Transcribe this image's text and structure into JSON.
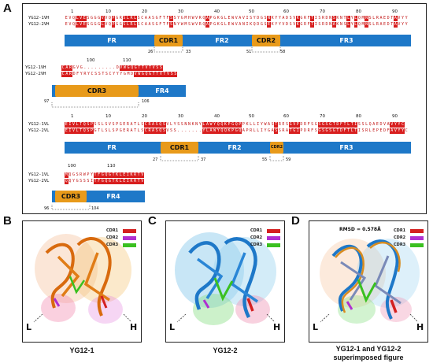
{
  "panels": {
    "a": "A",
    "b": "B",
    "c": "C",
    "d": "D"
  },
  "heavy": {
    "labels": [
      "YG12-1VH",
      "YG12-2VH"
    ],
    "seq1": "EVQLVESGGGVVQPGRSLRLSCAASGFTFSSYGMHWVRQAPGKGLEWVAVISYDGSNKYYADSVKGRFTISRDNSKNTLYLQMNSLRAEDTAVYY",
    "seq2": "EVQLVESGGGLVQPGGSLRLSCAASGFTFSNYWMSWVRQAPGKGLEWVANIKQDGSEKYYVDSVKGRFTISRDNAKNSLYLQMNSLRAEDTAVYY",
    "ticks": [
      "1",
      "10",
      "20",
      "30",
      "40",
      "50",
      "60",
      "70",
      "80",
      "90"
    ],
    "regions": [
      "FR",
      "CDR1",
      "FR2",
      "CDR2",
      "FR3"
    ],
    "bounds": [
      "26",
      "33",
      "51",
      "58"
    ],
    "labels2": [
      "YG12-1VH",
      "YG12-2VH"
    ],
    "ticks2": [
      "100",
      "110"
    ],
    "seq3": "CARGVG.........DVWGQGTTVTVSS",
    "seq4": "CARDFYRYCSSTSCYYYGMDVWGQGTTVTVSS",
    "regions2": [
      "CDR3",
      "FR4"
    ],
    "bounds2": [
      "97",
      "106"
    ]
  },
  "light": {
    "labels": [
      "YG12-1VL",
      "YG12-2VL"
    ],
    "seq1": "EIVLTQSPSSLSVSPGERATLSCRASQSVLYSSNNKNYLAWYQQKPGQPPKLLIYWASTRESGVPDRFSGSGSGTDFTLTISSLQAEDVAVYYC",
    "seq2": "EIVLTQSPGTLSLSPGERATLSCRASQSVSS.......YLAWYQQKPGQAPRLLIYGASSRATGIPDRFSGSGSGTDFTLTISRLEPEDFAVYYC",
    "ticks": [
      "1",
      "10",
      "20",
      "30",
      "40",
      "50",
      "60",
      "70",
      "80",
      "90"
    ],
    "regions": [
      "FR",
      "CDR1",
      "FR2",
      "CDR2",
      "FR3"
    ],
    "bounds": [
      "27",
      "37",
      "55",
      "59"
    ],
    "labels2": [
      "YG12-1VL",
      "YG12-2VL"
    ],
    "ticks2": [
      "100",
      "110"
    ],
    "seq3": "MQGSRWPYTFGQGTKLEIKRTV",
    "seq4": "QQYGSSSITFGQGTKLEIKRTV",
    "regions2": [
      "CDR3",
      "FR4"
    ],
    "bounds2": [
      "96",
      "104"
    ]
  },
  "legend": {
    "cdr1": "CDR1",
    "cdr2": "CDR2",
    "cdr3": "CDR3"
  },
  "colors": {
    "cdr1": "#d42020",
    "cdr2": "#b030d0",
    "cdr3": "#3ac020",
    "fr": "#1e78c8",
    "cdr": "#e89a1a",
    "residue_bg": "#d81e1e"
  },
  "structures": {
    "b": {
      "caption": "YG12-1",
      "L": "L",
      "H": "H"
    },
    "c": {
      "caption": "YG12-2",
      "L": "L",
      "H": "H"
    },
    "d": {
      "caption_line1": "YG12-1 and YG12-2",
      "caption_line2": "superimposed figure",
      "L": "L",
      "H": "H",
      "rmsd": "RMSD = 0.578Å"
    }
  }
}
